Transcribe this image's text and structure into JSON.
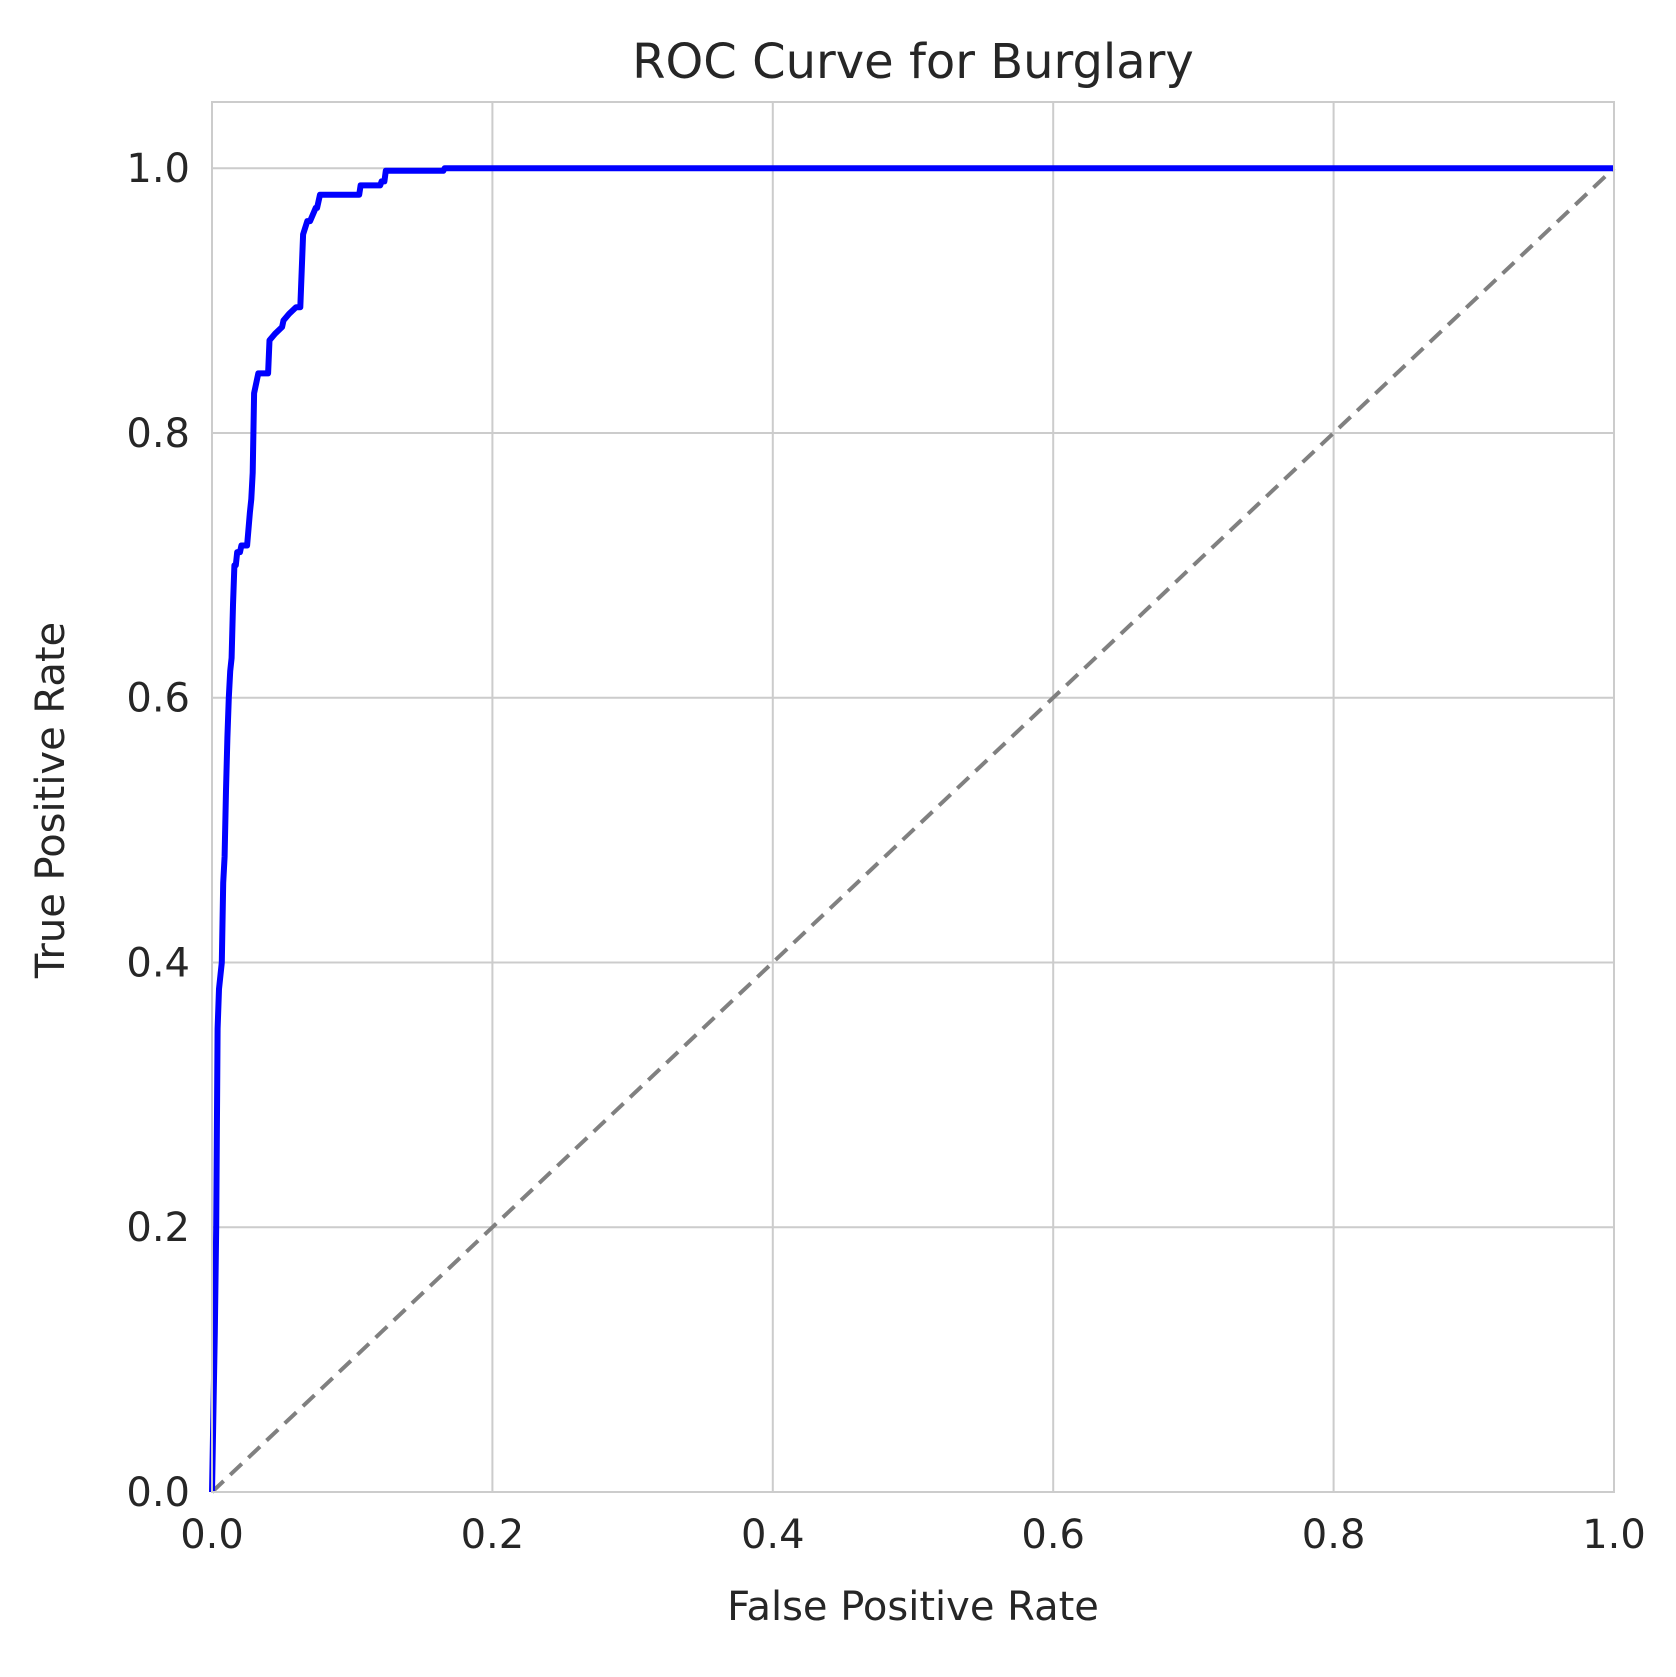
{
  "chart_data": {
    "type": "line",
    "title": "ROC Curve for Burglary",
    "xlabel": "False Positive Rate",
    "ylabel": "True Positive Rate",
    "xlim": [
      0.0,
      1.0
    ],
    "ylim": [
      0.0,
      1.05
    ],
    "grid": true,
    "x_ticks": [
      "0.0",
      "0.2",
      "0.4",
      "0.6",
      "0.8",
      "1.0"
    ],
    "y_ticks": [
      "0.0",
      "0.2",
      "0.4",
      "0.6",
      "0.8",
      "1.0"
    ],
    "x_tick_values": [
      0.0,
      0.2,
      0.4,
      0.6,
      0.8,
      1.0
    ],
    "y_tick_values": [
      0.0,
      0.2,
      0.4,
      0.6,
      0.8,
      1.0
    ],
    "series": [
      {
        "color": "#0000ff",
        "style": "solid",
        "x": [
          0.0,
          0.002,
          0.003,
          0.004,
          0.005,
          0.006,
          0.007,
          0.008,
          0.009,
          0.01,
          0.011,
          0.012,
          0.013,
          0.014,
          0.015,
          0.016,
          0.017,
          0.018,
          0.019,
          0.02,
          0.021,
          0.023,
          0.025,
          0.027,
          0.028,
          0.029,
          0.03,
          0.031,
          0.032,
          0.033,
          0.035,
          0.04,
          0.041,
          0.045,
          0.05,
          0.051,
          0.055,
          0.06,
          0.063,
          0.065,
          0.068,
          0.07,
          0.074,
          0.075,
          0.077,
          0.082,
          0.105,
          0.106,
          0.12,
          0.121,
          0.123,
          0.124,
          0.165,
          0.166,
          1.0
        ],
        "y": [
          0.0,
          0.12,
          0.2,
          0.35,
          0.38,
          0.39,
          0.4,
          0.46,
          0.48,
          0.53,
          0.57,
          0.6,
          0.62,
          0.63,
          0.67,
          0.7,
          0.7,
          0.71,
          0.71,
          0.71,
          0.715,
          0.715,
          0.715,
          0.74,
          0.75,
          0.77,
          0.83,
          0.835,
          0.84,
          0.845,
          0.845,
          0.845,
          0.87,
          0.875,
          0.88,
          0.885,
          0.89,
          0.895,
          0.895,
          0.95,
          0.96,
          0.96,
          0.97,
          0.97,
          0.98,
          0.98,
          0.98,
          0.987,
          0.987,
          0.99,
          0.99,
          0.998,
          0.998,
          1.0,
          1.0
        ]
      },
      {
        "color": "#808080",
        "style": "dashed",
        "x": [
          0.0,
          1.0
        ],
        "y": [
          0.0,
          1.0
        ]
      }
    ]
  }
}
